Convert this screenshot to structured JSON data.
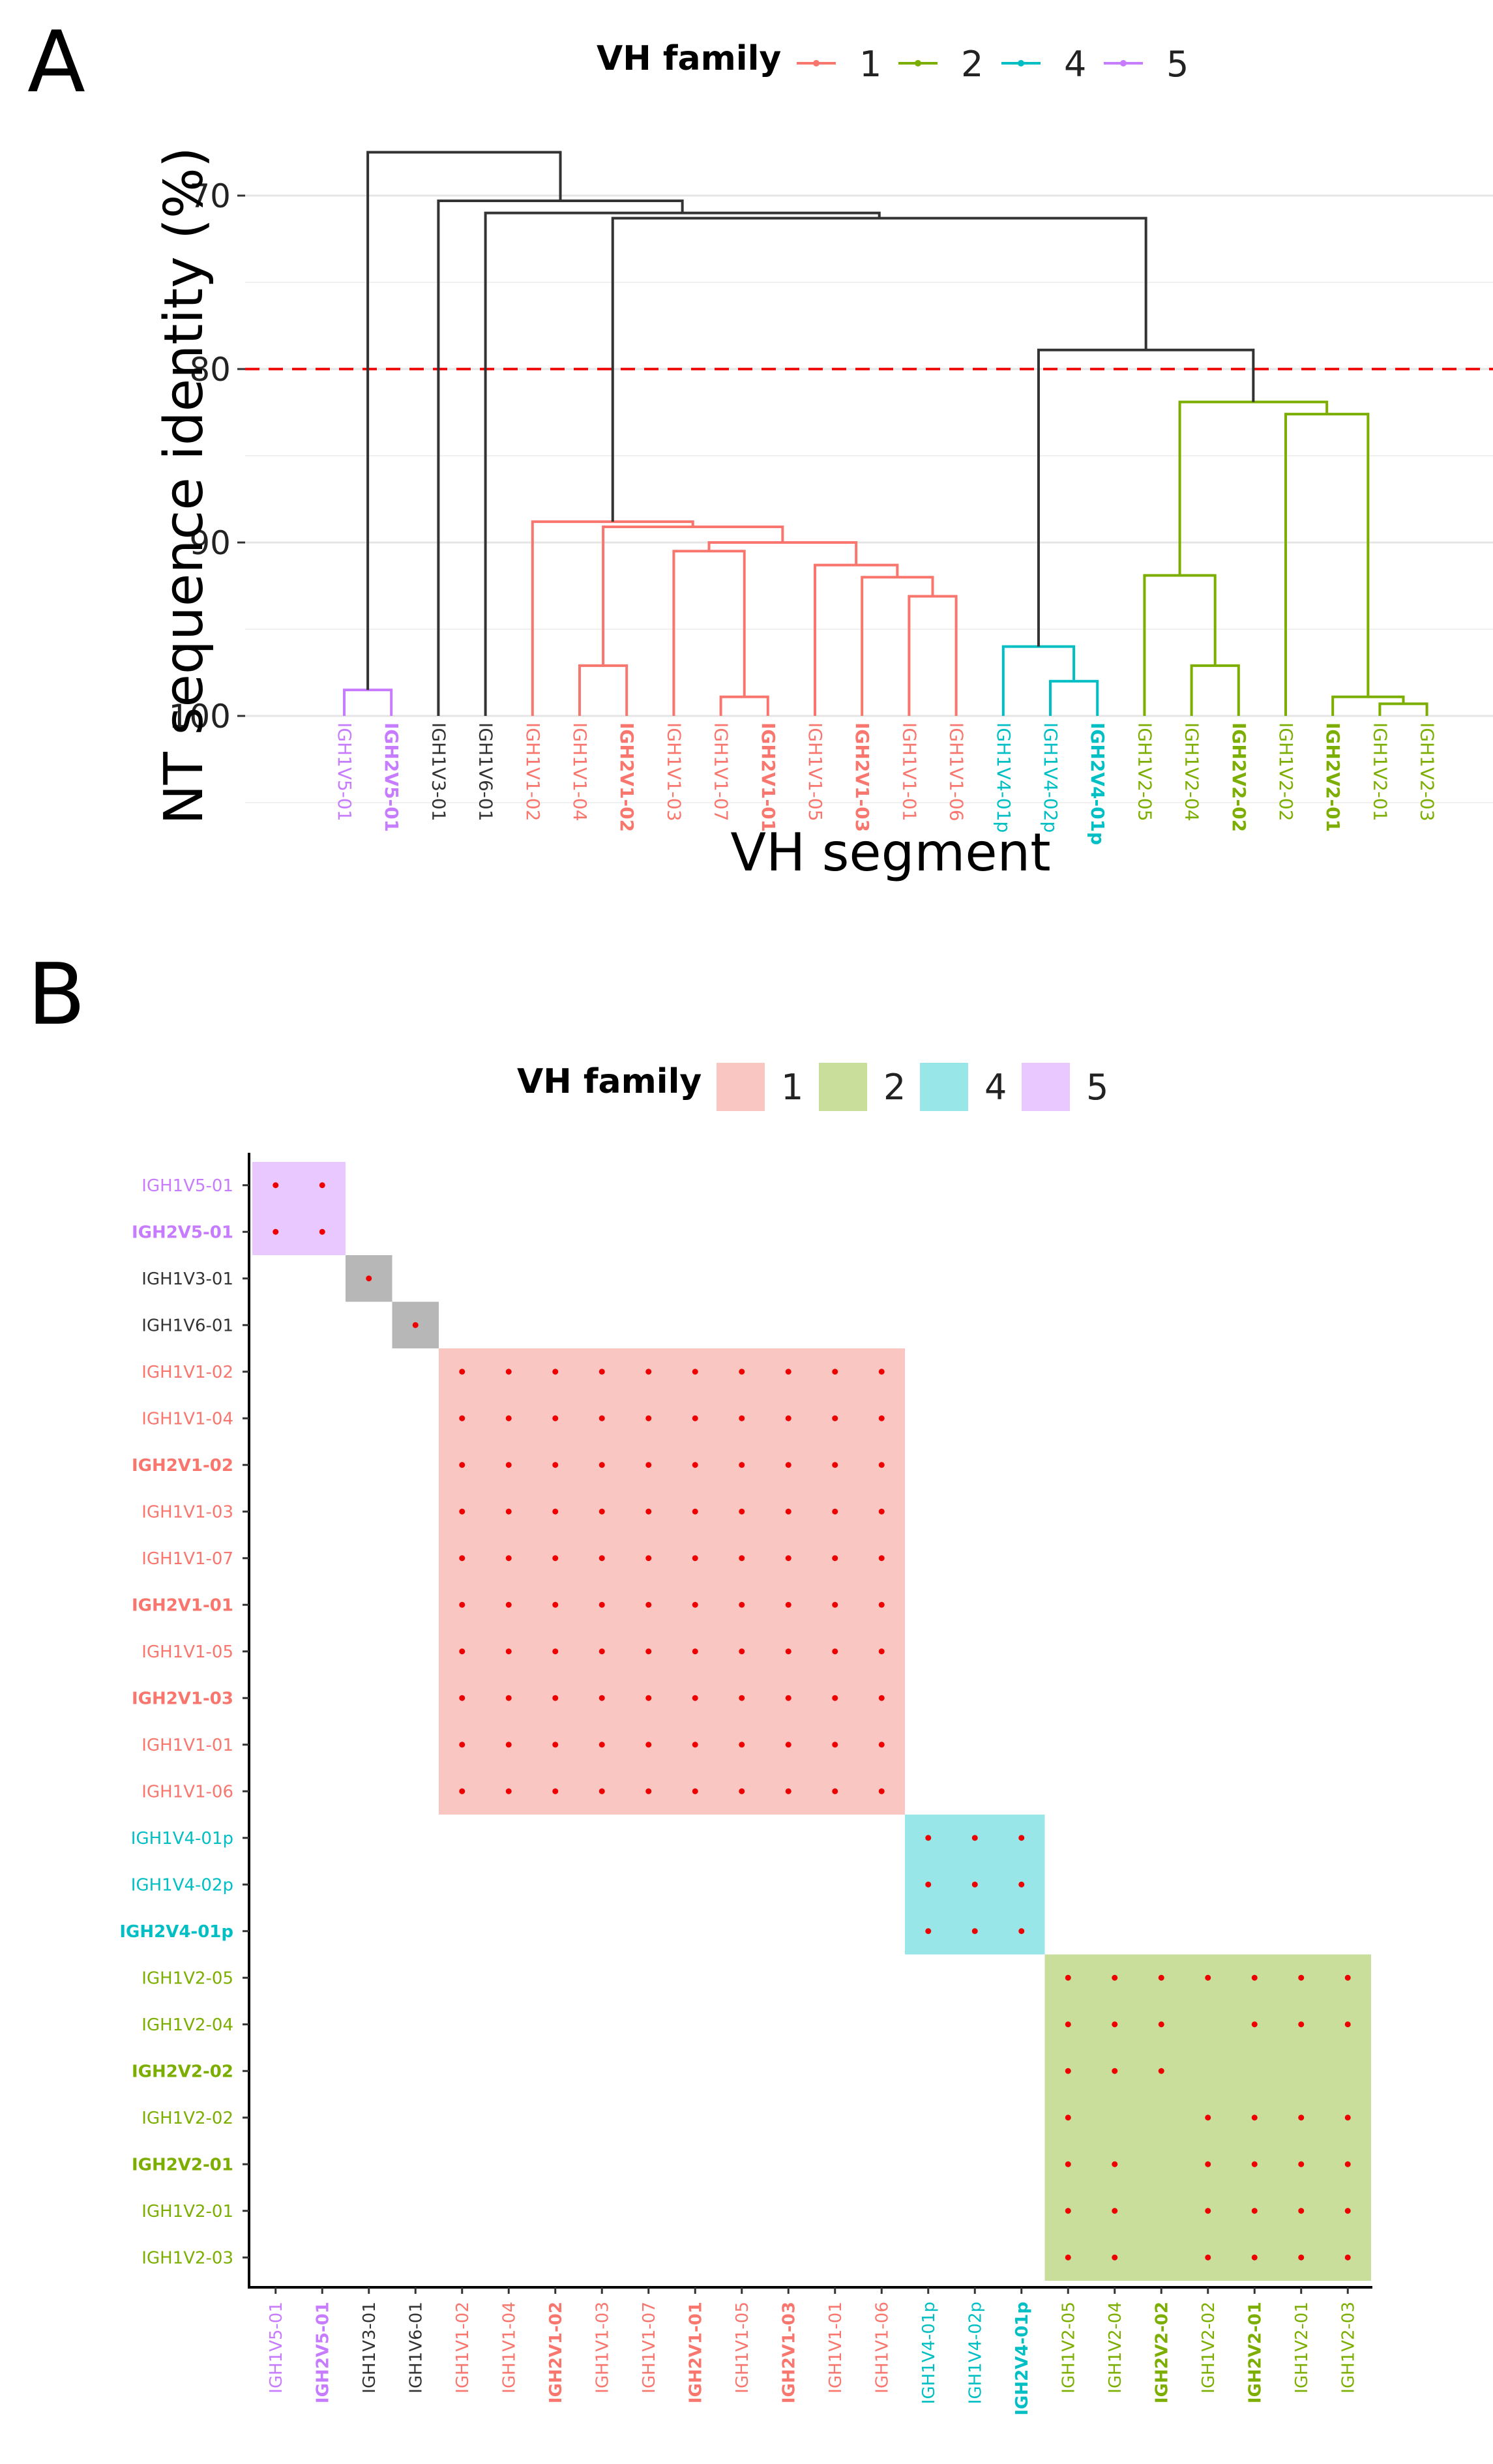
{
  "colors": {
    "1": "#F8766D",
    "2": "#7CAE00",
    "4": "#00BFC4",
    "5": "#C77CFF",
    "black": "#333333",
    "grey": "#BBBBBB",
    "cut": "#EE1111",
    "dot": "#EE0000"
  },
  "fill_colors": {
    "1": "#F9C6C2",
    "2": "#C9DE9A",
    "4": "#99E6E8",
    "5": "#E9C8FF",
    "3": "#B7B7B7",
    "6": "#B7B7B7"
  },
  "panel_a": {
    "letter": "A",
    "legend_title": "VH family",
    "legend_items": [
      {
        "label": "1",
        "family": "1"
      },
      {
        "label": "2",
        "family": "2"
      },
      {
        "label": "4",
        "family": "4"
      },
      {
        "label": "5",
        "family": "5"
      }
    ]
  },
  "panel_b": {
    "letter": "B",
    "legend_title": "VH family",
    "legend_items": [
      {
        "label": "1",
        "family": "1"
      },
      {
        "label": "2",
        "family": "2"
      },
      {
        "label": "4",
        "family": "4"
      },
      {
        "label": "5",
        "family": "5"
      }
    ]
  },
  "chart_data": [
    {
      "type": "dendrogram",
      "xlabel": "VH segment",
      "ylabel": "NT sequence identity (%)",
      "ylim": [
        105,
        67
      ],
      "yticks": [
        70,
        80,
        90,
        100
      ],
      "cutoff_line": 80,
      "leaves": [
        {
          "label": "IGH1V5-01",
          "family": "5",
          "bold": false
        },
        {
          "label": "IGH2V5-01",
          "family": "5",
          "bold": true
        },
        {
          "label": "IGH1V3-01",
          "family": "3",
          "bold": false
        },
        {
          "label": "IGH1V6-01",
          "family": "6",
          "bold": false
        },
        {
          "label": "IGH1V1-02",
          "family": "1",
          "bold": false
        },
        {
          "label": "IGH1V1-04",
          "family": "1",
          "bold": false
        },
        {
          "label": "IGH2V1-02",
          "family": "1",
          "bold": true
        },
        {
          "label": "IGH1V1-03",
          "family": "1",
          "bold": false
        },
        {
          "label": "IGH1V1-07",
          "family": "1",
          "bold": false
        },
        {
          "label": "IGH2V1-01",
          "family": "1",
          "bold": true
        },
        {
          "label": "IGH1V1-05",
          "family": "1",
          "bold": false
        },
        {
          "label": "IGH2V1-03",
          "family": "1",
          "bold": true
        },
        {
          "label": "IGH1V1-01",
          "family": "1",
          "bold": false
        },
        {
          "label": "IGH1V1-06",
          "family": "1",
          "bold": false
        },
        {
          "label": "IGH1V4-01p",
          "family": "4",
          "bold": false
        },
        {
          "label": "IGH1V4-02p",
          "family": "4",
          "bold": false
        },
        {
          "label": "IGH2V4-01p",
          "family": "4",
          "bold": true
        },
        {
          "label": "IGH1V2-05",
          "family": "2",
          "bold": false
        },
        {
          "label": "IGH1V2-04",
          "family": "2",
          "bold": false
        },
        {
          "label": "IGH2V2-02",
          "family": "2",
          "bold": true
        },
        {
          "label": "IGH1V2-02",
          "family": "2",
          "bold": false
        },
        {
          "label": "IGH2V2-01",
          "family": "2",
          "bold": true
        },
        {
          "label": "IGH1V2-01",
          "family": "2",
          "bold": false
        },
        {
          "label": "IGH1V2-03",
          "family": "2",
          "bold": false
        }
      ],
      "merges": [
        {
          "a": {
            "leaf": 0
          },
          "b": {
            "leaf": 1
          },
          "height": 98.5,
          "color": "5"
        },
        {
          "a": {
            "leaf": 5
          },
          "b": {
            "leaf": 6
          },
          "height": 97.1,
          "color": "1"
        },
        {
          "a": {
            "leaf": 8
          },
          "b": {
            "leaf": 9
          },
          "height": 98.9,
          "color": "1"
        },
        {
          "a": {
            "leaf": 7
          },
          "b": {
            "node": 2
          },
          "height": 90.5,
          "color": "1"
        },
        {
          "a": {
            "leaf": 12
          },
          "b": {
            "leaf": 13
          },
          "height": 93.1,
          "color": "1"
        },
        {
          "a": {
            "leaf": 11
          },
          "b": {
            "node": 4
          },
          "height": 92.0,
          "color": "1"
        },
        {
          "a": {
            "leaf": 10
          },
          "b": {
            "node": 5
          },
          "height": 91.3,
          "color": "1"
        },
        {
          "a": {
            "node": 3
          },
          "b": {
            "node": 6
          },
          "height": 90.0,
          "color": "1"
        },
        {
          "a": {
            "node": 1
          },
          "b": {
            "node": 7
          },
          "height": 89.1,
          "color": "1"
        },
        {
          "a": {
            "leaf": 4
          },
          "b": {
            "node": 8
          },
          "height": 88.8,
          "color": "1"
        },
        {
          "a": {
            "leaf": 15
          },
          "b": {
            "leaf": 16
          },
          "height": 98.0,
          "color": "4"
        },
        {
          "a": {
            "leaf": 14
          },
          "b": {
            "node": 10
          },
          "height": 96.0,
          "color": "4"
        },
        {
          "a": {
            "leaf": 18
          },
          "b": {
            "leaf": 19
          },
          "height": 97.1,
          "color": "2"
        },
        {
          "a": {
            "leaf": 17
          },
          "b": {
            "node": 12
          },
          "height": 91.9,
          "color": "2"
        },
        {
          "a": {
            "leaf": 22
          },
          "b": {
            "leaf": 23
          },
          "height": 99.3,
          "color": "2"
        },
        {
          "a": {
            "leaf": 21
          },
          "b": {
            "node": 14
          },
          "height": 98.9,
          "color": "2"
        },
        {
          "a": {
            "leaf": 20
          },
          "b": {
            "node": 15
          },
          "height": 82.6,
          "color": "2"
        },
        {
          "a": {
            "node": 13
          },
          "b": {
            "node": 16
          },
          "height": 81.9,
          "color": "2"
        },
        {
          "a": {
            "node": 11
          },
          "b": {
            "node": 17
          },
          "height": 78.9,
          "color": "black"
        },
        {
          "a": {
            "node": 9
          },
          "b": {
            "node": 18
          },
          "height": 71.3,
          "color": "black"
        },
        {
          "a": {
            "leaf": 3
          },
          "b": {
            "node": 19
          },
          "height": 71.0,
          "color": "black"
        },
        {
          "a": {
            "leaf": 2
          },
          "b": {
            "node": 20
          },
          "height": 70.3,
          "color": "black"
        },
        {
          "a": {
            "node": 0
          },
          "b": {
            "node": 21
          },
          "height": 67.5,
          "color": "black"
        }
      ]
    },
    {
      "type": "heatmap",
      "row_labels_follow": "leaves",
      "blocks": [
        {
          "family": "5",
          "start": 0,
          "end": 1
        },
        {
          "family": "3",
          "start": 2,
          "end": 2
        },
        {
          "family": "6",
          "start": 3,
          "end": 3
        },
        {
          "family": "1",
          "start": 4,
          "end": 13
        },
        {
          "family": "4",
          "start": 14,
          "end": 16
        },
        {
          "family": "2",
          "start": 17,
          "end": 23
        }
      ],
      "dot_blocks": [
        0,
        1,
        2,
        3,
        4
      ],
      "family2_dots": [
        [
          0,
          1,
          2,
          3,
          4,
          5,
          6
        ],
        [
          0,
          1,
          2,
          4,
          5,
          6
        ],
        [
          0,
          1,
          2
        ],
        [
          0,
          3,
          4,
          5,
          6
        ],
        [
          0,
          1,
          3,
          4,
          5,
          6
        ],
        [
          0,
          1,
          3,
          4,
          5,
          6
        ],
        [
          0,
          1,
          3,
          4,
          5,
          6
        ]
      ]
    }
  ]
}
